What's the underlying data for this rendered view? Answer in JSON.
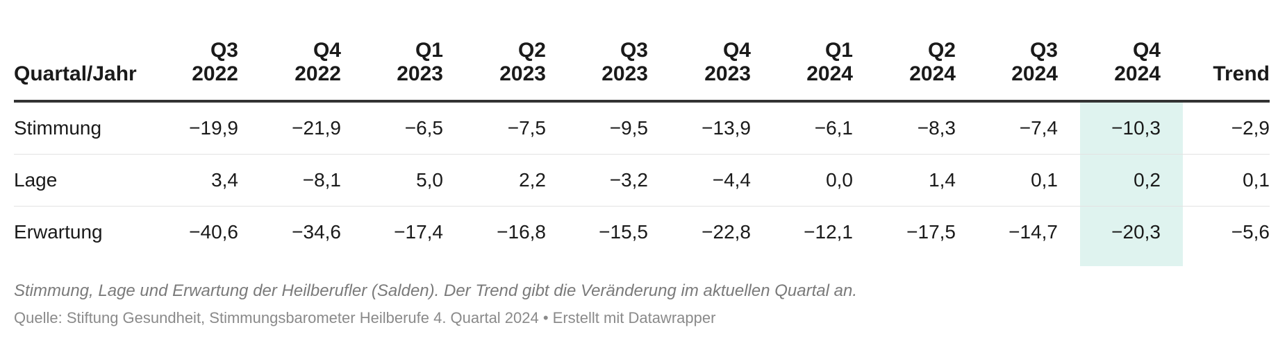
{
  "chart_data": {
    "type": "table",
    "columns": [
      {
        "label": "Quartal/Jahr"
      },
      {
        "line1": "Q3",
        "line2": "2022"
      },
      {
        "line1": "Q4",
        "line2": "2022"
      },
      {
        "line1": "Q1",
        "line2": "2023"
      },
      {
        "line1": "Q2",
        "line2": "2023"
      },
      {
        "line1": "Q3",
        "line2": "2023"
      },
      {
        "line1": "Q4",
        "line2": "2023"
      },
      {
        "line1": "Q1",
        "line2": "2024"
      },
      {
        "line1": "Q2",
        "line2": "2024"
      },
      {
        "line1": "Q3",
        "line2": "2024"
      },
      {
        "line1": "Q4",
        "line2": "2024"
      },
      {
        "label": "Trend"
      }
    ],
    "rows": [
      {
        "label": "Stimmung",
        "values": [
          "−19,9",
          "−21,9",
          "−6,5",
          "−7,5",
          "−9,5",
          "−13,9",
          "−6,1",
          "−8,3",
          "−7,4",
          "−10,3"
        ],
        "trend": "−2,9"
      },
      {
        "label": "Lage",
        "values": [
          "3,4",
          "−8,1",
          "5,0",
          "2,2",
          "−3,2",
          "−4,4",
          "0,0",
          "1,4",
          "0,1",
          "0,2"
        ],
        "trend": "0,1"
      },
      {
        "label": "Erwartung",
        "values": [
          "−40,6",
          "−34,6",
          "−17,4",
          "−16,8",
          "−15,5",
          "−22,8",
          "−12,1",
          "−17,5",
          "−14,7",
          "−20,3"
        ],
        "trend": "−5,6"
      }
    ],
    "highlight_column": "Q4 2024",
    "highlight_color": "#dff3ef",
    "caption": "Stimmung, Lage und Erwartung der Heilberufler (Salden). Der Trend gibt die Veränderung im aktuellen Quartal an.",
    "source": "Quelle: Stiftung Gesundheit, Stimmungsbarometer Heilberufe 4. Quartal 2024 • Erstellt mit Datawrapper"
  }
}
